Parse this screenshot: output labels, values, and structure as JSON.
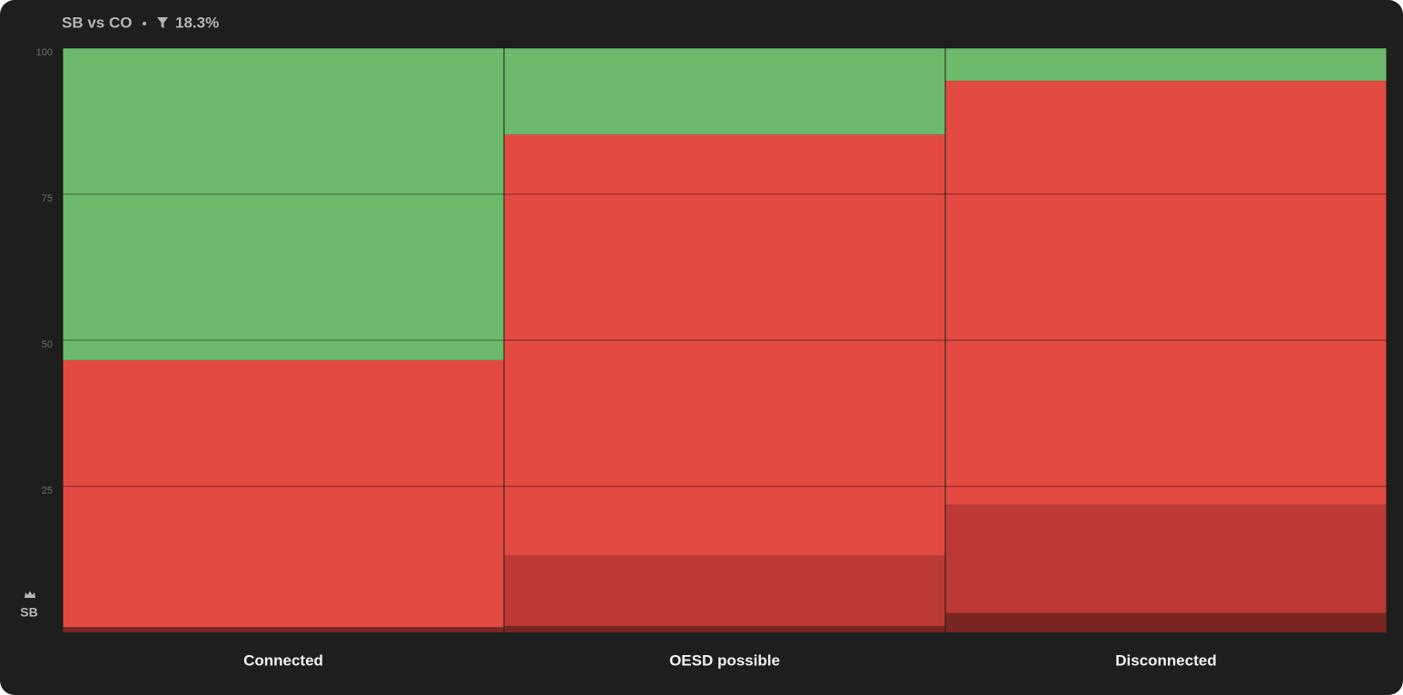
{
  "chart_data": {
    "type": "stacked_bar",
    "title": "SB vs CO",
    "filter_label": "18.3%",
    "y_label": "SB",
    "categories": [
      "Connected",
      "OESD possible",
      "Disconnected"
    ],
    "series": [
      {
        "color": "#7a2622",
        "values": [
          0.9,
          1.1,
          3.3
        ]
      },
      {
        "color": "#bc3a34",
        "values": [
          0,
          12.1,
          18.6
        ]
      },
      {
        "color": "#e24a42",
        "values": [
          45.7,
          72.0,
          72.5
        ]
      },
      {
        "color": "#6db96b",
        "values": [
          53.4,
          14.8,
          5.6
        ]
      }
    ],
    "ylim": [
      0,
      100
    ],
    "yticks": [
      25,
      50,
      75,
      100
    ],
    "grid": true
  }
}
